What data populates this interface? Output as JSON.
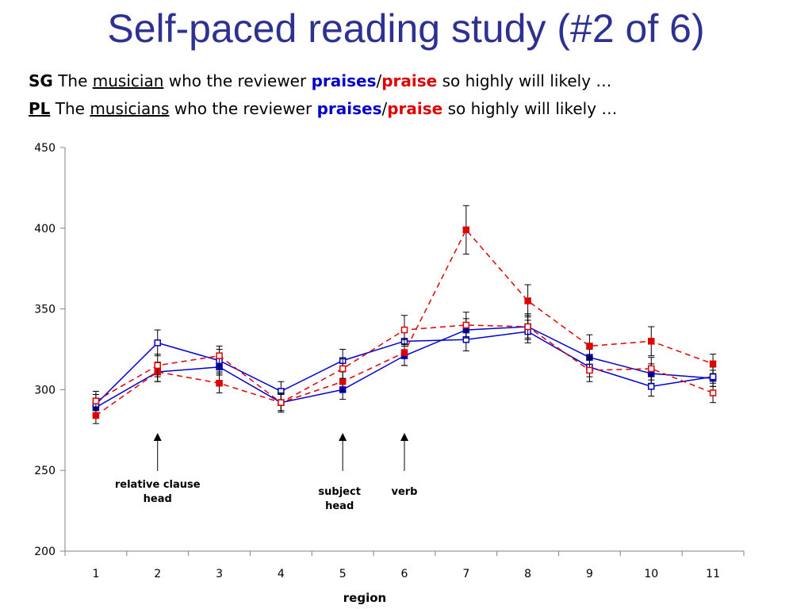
{
  "slide": {
    "title": "Self-paced reading study (#2 of 6)",
    "sentences": [
      {
        "cond": "SG",
        "the": "The",
        "head": "musician",
        "mid": "who the reviewer",
        "verb_a": "praises",
        "slash": "/",
        "verb_b": "praise",
        "tail": "so highly will likely …"
      },
      {
        "cond": "PL",
        "the": "The",
        "head": "musicians",
        "mid": "who the reviewer",
        "verb_a": "praises",
        "slash": "/",
        "verb_b": "praise",
        "tail": "so highly will likely …"
      }
    ]
  },
  "chart_data": {
    "type": "line",
    "xlabel": "region",
    "ylabel": "",
    "categories": [
      "1",
      "2",
      "3",
      "4",
      "5",
      "6",
      "7",
      "8",
      "9",
      "10",
      "11"
    ],
    "ylim": [
      200,
      450
    ],
    "yticks": [
      200,
      250,
      300,
      350,
      400,
      450
    ],
    "grid": false,
    "series": [
      {
        "color": "#0000cc",
        "dash": false,
        "marker": "filled-square",
        "values": [
          289,
          311,
          314,
          292,
          300,
          321,
          337,
          339,
          320,
          310,
          307
        ],
        "errors": [
          5,
          6,
          5,
          5,
          6,
          6,
          7,
          7,
          5,
          6,
          5
        ]
      },
      {
        "color": "#0000cc",
        "dash": false,
        "marker": "open-square",
        "values": [
          291,
          329,
          318,
          299,
          318,
          330,
          331,
          336,
          314,
          302,
          308
        ],
        "errors": [
          6,
          8,
          7,
          6,
          7,
          8,
          7,
          7,
          6,
          6,
          6
        ]
      },
      {
        "color": "#e00000",
        "dash": true,
        "marker": "filled-square",
        "values": [
          284,
          311,
          304,
          292,
          305,
          323,
          399,
          355,
          327,
          330,
          316
        ],
        "errors": [
          5,
          6,
          6,
          5,
          6,
          8,
          15,
          10,
          7,
          9,
          6
        ]
      },
      {
        "color": "#e00000",
        "dash": true,
        "marker": "open-square",
        "values": [
          293,
          315,
          321,
          292,
          313,
          337,
          340,
          339,
          312,
          313,
          298
        ],
        "errors": [
          6,
          7,
          6,
          6,
          6,
          9,
          8,
          8,
          7,
          7,
          6
        ]
      }
    ],
    "annotations": [
      {
        "region": 2,
        "lines": [
          "relative clause",
          "head"
        ]
      },
      {
        "region": 5,
        "lines": [
          "subject",
          "head"
        ]
      },
      {
        "region": 6,
        "lines": [
          "verb"
        ]
      }
    ]
  }
}
